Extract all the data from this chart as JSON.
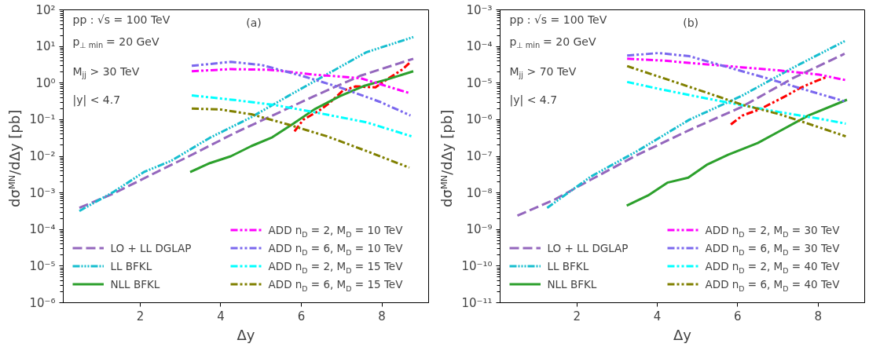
{
  "chart_data": [
    {
      "type": "line",
      "title": "(a)",
      "xlabel": "Δy",
      "ylabel": "dσᴹᴺ/dΔy  [pb]",
      "log": true,
      "grid": false,
      "legend": "bottom",
      "annotations": [
        "pp :  √s = 100 TeV",
        "p$_{⊥ min}$ = 20 GeV",
        "M$_{jj}$ > 30 TeV",
        "|y| < 4.7"
      ],
      "xlim": [
        0.09,
        9.16
      ],
      "xticks": [
        2,
        4,
        6,
        8
      ],
      "ylim": [
        1e-06,
        100
      ],
      "yticks": [
        {
          "value": 1e-06,
          "label": "10⁻⁶"
        },
        {
          "value": 1e-05,
          "label": "10⁻⁵"
        },
        {
          "value": 0.0001,
          "label": "10⁻⁴"
        },
        {
          "value": 0.001,
          "label": "10⁻³"
        },
        {
          "value": 0.01,
          "label": "10⁻²"
        },
        {
          "value": 0.1,
          "label": "10⁻¹"
        },
        {
          "value": 1,
          "label": "10⁰"
        },
        {
          "value": 10,
          "label": "10¹"
        },
        {
          "value": 100,
          "label": "10²"
        }
      ],
      "series": [
        {
          "color": "#ff0000",
          "line_style": "dashdot",
          "x": [
            5.83,
            6.05,
            6.45,
            6.71,
            7.03,
            7.35,
            7.84,
            8.13,
            8.52,
            8.68
          ],
          "values": [
            0.048,
            0.1,
            0.18,
            0.29,
            0.62,
            0.81,
            0.76,
            1.26,
            2.4,
            3.5
          ]
        },
        {
          "name": "LO + LL DGLAP",
          "color": "#9467bd",
          "line_style": "dashed",
          "x": [
            0.49,
            1.33,
            2.43,
            3.21,
            4.38,
            5.35,
            6.32,
            7.48,
            8.78
          ],
          "values": [
            0.00039,
            0.00095,
            0.0038,
            0.01,
            0.045,
            0.14,
            0.44,
            1.6,
            4.6
          ]
        },
        {
          "name": "LL BFKL",
          "color": "#17becf",
          "line_style": "dotted",
          "x": [
            0.49,
            1.33,
            2.11,
            2.76,
            3.73,
            4.76,
            5.67,
            6.58,
            7.61,
            8.78
          ],
          "values": [
            0.00032,
            0.00105,
            0.0038,
            0.0074,
            0.032,
            0.117,
            0.44,
            1.6,
            6.9,
            18
          ]
        },
        {
          "name": "NLL BFKL",
          "color": "#2ca02c",
          "line_style": "solid",
          "x": [
            3.24,
            3.73,
            4.25,
            4.76,
            5.28,
            5.8,
            6.32,
            6.96,
            7.55,
            8.13,
            8.78
          ],
          "values": [
            0.0037,
            0.0065,
            0.01,
            0.019,
            0.033,
            0.078,
            0.19,
            0.44,
            0.83,
            1.26,
            2.1
          ]
        },
        {
          "name": "ADD n$_{D}$ = 2, M$_{D}$ = 10 TeV",
          "color": "#ff00ff",
          "line_style": "dashdot",
          "x": [
            3.28,
            4.25,
            5.22,
            6.32,
            7.48,
            8.71
          ],
          "values": [
            2.1,
            2.4,
            2.3,
            1.7,
            1.35,
            0.52
          ]
        },
        {
          "name": "ADD n$_{D}$ = 6, M$_{D}$ = 10 TeV",
          "color": "#7b68ee",
          "line_style": "dashdot",
          "x": [
            3.28,
            4.25,
            5.02,
            5.99,
            6.96,
            7.94,
            8.71
          ],
          "values": [
            2.95,
            3.8,
            3.1,
            1.6,
            0.76,
            0.31,
            0.13
          ]
        },
        {
          "name": "ADD n$_{D}$ = 2, M$_{D}$ = 15 TeV",
          "color": "#00ffff",
          "line_style": "dashdot",
          "x": [
            3.28,
            4.38,
            5.35,
            6.32,
            7.61,
            8.74
          ],
          "values": [
            0.46,
            0.34,
            0.25,
            0.16,
            0.085,
            0.035
          ]
        },
        {
          "name": "ADD n$_{D}$ = 6, M$_{D}$ = 15 TeV",
          "color": "#808000",
          "line_style": "dashdot",
          "x": [
            3.28,
            3.99,
            4.76,
            5.67,
            6.64,
            7.61,
            8.68
          ],
          "values": [
            0.2,
            0.19,
            0.14,
            0.074,
            0.035,
            0.014,
            0.0049
          ]
        }
      ]
    },
    {
      "type": "line",
      "title": "(b)",
      "xlabel": "Δy",
      "ylabel": "dσᴹᴺ/dΔy  [pb]",
      "log": true,
      "grid": false,
      "legend": "bottom",
      "annotations": [
        "pp :  √s = 100 TeV",
        "p$_{⊥ min}$ = 20 GeV",
        "M$_{jj}$ > 70 TeV",
        "|y| < 4.7"
      ],
      "xlim": [
        0.09,
        9.16
      ],
      "xticks": [
        2,
        4,
        6,
        8
      ],
      "ylim": [
        1e-11,
        0.001
      ],
      "yticks": [
        {
          "value": 1e-11,
          "label": "10⁻¹¹"
        },
        {
          "value": 1e-10,
          "label": "10⁻¹⁰"
        },
        {
          "value": 1e-09,
          "label": "10⁻⁹"
        },
        {
          "value": 1e-08,
          "label": "10⁻⁸"
        },
        {
          "value": 1e-07,
          "label": "10⁻⁷"
        },
        {
          "value": 1e-06,
          "label": "10⁻⁶"
        },
        {
          "value": 1e-05,
          "label": "10⁻⁵"
        },
        {
          "value": 0.0001,
          "label": "10⁻⁴"
        },
        {
          "value": 0.001,
          "label": "10⁻³"
        }
      ],
      "series": [
        {
          "color": "#ff0000",
          "line_style": "dashdot",
          "x": [
            5.83,
            6.12,
            6.54,
            6.83,
            7.21,
            7.53,
            7.92,
            8.24
          ],
          "values": [
            7.4e-07,
            1.3e-06,
            1.9e-06,
            2.75e-06,
            4.5e-06,
            7.1e-06,
            1.1e-05,
            1.5e-05
          ]
        },
        {
          "name": "LO + LL DGLAP",
          "color": "#9467bd",
          "line_style": "dashed",
          "x": [
            0.52,
            1.45,
            2.35,
            3.51,
            4.8,
            6.09,
            7.37,
            8.66
          ],
          "values": [
            2.4e-09,
            6.6e-09,
            2.3e-08,
            1.1e-07,
            5.2e-07,
            2.2e-06,
            1.35e-05,
            6.3e-05
          ]
        },
        {
          "name": "LL BFKL",
          "color": "#17becf",
          "line_style": "dotted",
          "x": [
            1.26,
            2.35,
            3.51,
            4.8,
            6.09,
            7.37,
            8.69
          ],
          "values": [
            3.9e-09,
            2.8e-08,
            1.4e-07,
            1e-06,
            4.4e-06,
            2.6e-05,
            0.000145
          ]
        },
        {
          "name": "NLL BFKL",
          "color": "#2ca02c",
          "line_style": "solid",
          "x": [
            3.24,
            3.77,
            4.25,
            4.77,
            5.25,
            5.76,
            6.5,
            6.99,
            7.76,
            8.72
          ],
          "values": [
            4.5e-09,
            8.5e-09,
            1.9e-08,
            2.6e-08,
            6e-08,
            1.1e-07,
            2.3e-07,
            4.5e-07,
            1.3e-06,
            3.5e-06
          ]
        },
        {
          "name": "ADD n$_{D}$ = 2, M$_{D}$ = 30 TeV",
          "color": "#ff00ff",
          "line_style": "dashdot",
          "x": [
            3.25,
            4.16,
            5.12,
            6.09,
            7.05,
            8.02,
            8.69
          ],
          "values": [
            4.6e-05,
            4.1e-05,
            3.3e-05,
            2.7e-05,
            2.2e-05,
            1.7e-05,
            1.2e-05
          ]
        },
        {
          "name": "ADD n$_{D}$ = 6, M$_{D}$ = 30 TeV",
          "color": "#7b68ee",
          "line_style": "dashdot",
          "x": [
            3.25,
            4.03,
            4.8,
            5.76,
            6.73,
            7.69,
            8.69
          ],
          "values": [
            5.6e-05,
            6.6e-05,
            5.4e-05,
            2.7e-05,
            1.35e-05,
            6.5e-06,
            3.1e-06
          ]
        },
        {
          "name": "ADD n$_{D}$ = 2, M$_{D}$ = 40 TeV",
          "color": "#00ffff",
          "line_style": "dashdot",
          "x": [
            3.25,
            4.16,
            5.12,
            6.09,
            7.05,
            8.02,
            8.69
          ],
          "values": [
            1.07e-05,
            6.5e-06,
            4e-06,
            2.5e-06,
            1.6e-06,
            1.07e-06,
            7.8e-07
          ]
        },
        {
          "name": "ADD n$_{D}$ = 6, M$_{D}$ = 40 TeV",
          "color": "#808000",
          "line_style": "dashdot",
          "x": [
            3.25,
            4.16,
            5.12,
            6.09,
            7.05,
            8.02,
            8.69
          ],
          "values": [
            2.9e-05,
            1.35e-05,
            6e-06,
            2.6e-06,
            1.4e-06,
            6.2e-07,
            3.5e-07
          ]
        }
      ]
    }
  ]
}
